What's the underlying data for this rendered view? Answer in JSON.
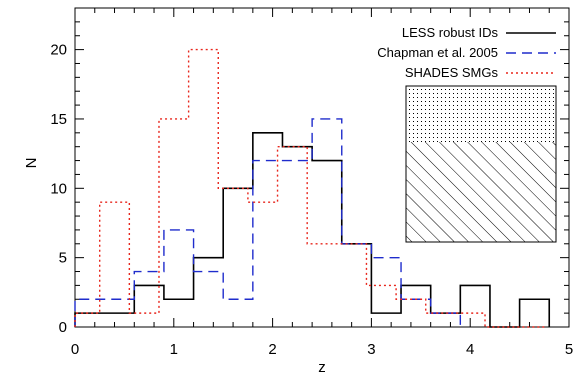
{
  "chart_data": {
    "type": "line",
    "style": "histogram",
    "xlabel": "z",
    "ylabel": "N",
    "xlim": [
      0,
      5
    ],
    "ylim": [
      0,
      23
    ],
    "xticks": [
      "0",
      "1",
      "2",
      "3",
      "4",
      "5"
    ],
    "yticks": [
      "0",
      "5",
      "10",
      "15",
      "20"
    ],
    "grid": false,
    "legend_position": "top-right",
    "series": [
      {
        "name": "LESS robust IDs",
        "color": "#000000",
        "dash": "solid",
        "edges": [
          0,
          0.3,
          0.6,
          0.9,
          1.2,
          1.5,
          1.8,
          2.1,
          2.4,
          2.7,
          3.0,
          3.3,
          3.6,
          3.9,
          4.2,
          4.5,
          4.8
        ],
        "values": [
          1,
          1,
          3,
          2,
          5,
          10,
          14,
          13,
          12,
          6,
          1,
          3,
          1,
          3,
          0,
          2
        ]
      },
      {
        "name": "Chapman et al. 2005",
        "color": "#1f2ccc",
        "dash": "dashed",
        "edges": [
          0,
          0.3,
          0.6,
          0.9,
          1.2,
          1.5,
          1.8,
          2.1,
          2.4,
          2.7,
          3.0,
          3.3,
          3.6,
          3.9
        ],
        "values": [
          2,
          2,
          4,
          7,
          4,
          2,
          12,
          12,
          15,
          6,
          5,
          2,
          1
        ]
      },
      {
        "name": "SHADES SMGs",
        "color": "#e8261c",
        "dash": "dotted",
        "edges": [
          0,
          0.25,
          0.55,
          0.85,
          1.15,
          1.45,
          1.75,
          2.05,
          2.35,
          2.65,
          2.95,
          3.25,
          3.55,
          3.85,
          4.15,
          4.45,
          4.75
        ],
        "values": [
          1,
          9,
          1,
          15,
          20,
          10,
          9,
          13,
          6,
          6,
          3,
          2,
          1,
          1,
          0,
          0
        ]
      }
    ]
  }
}
